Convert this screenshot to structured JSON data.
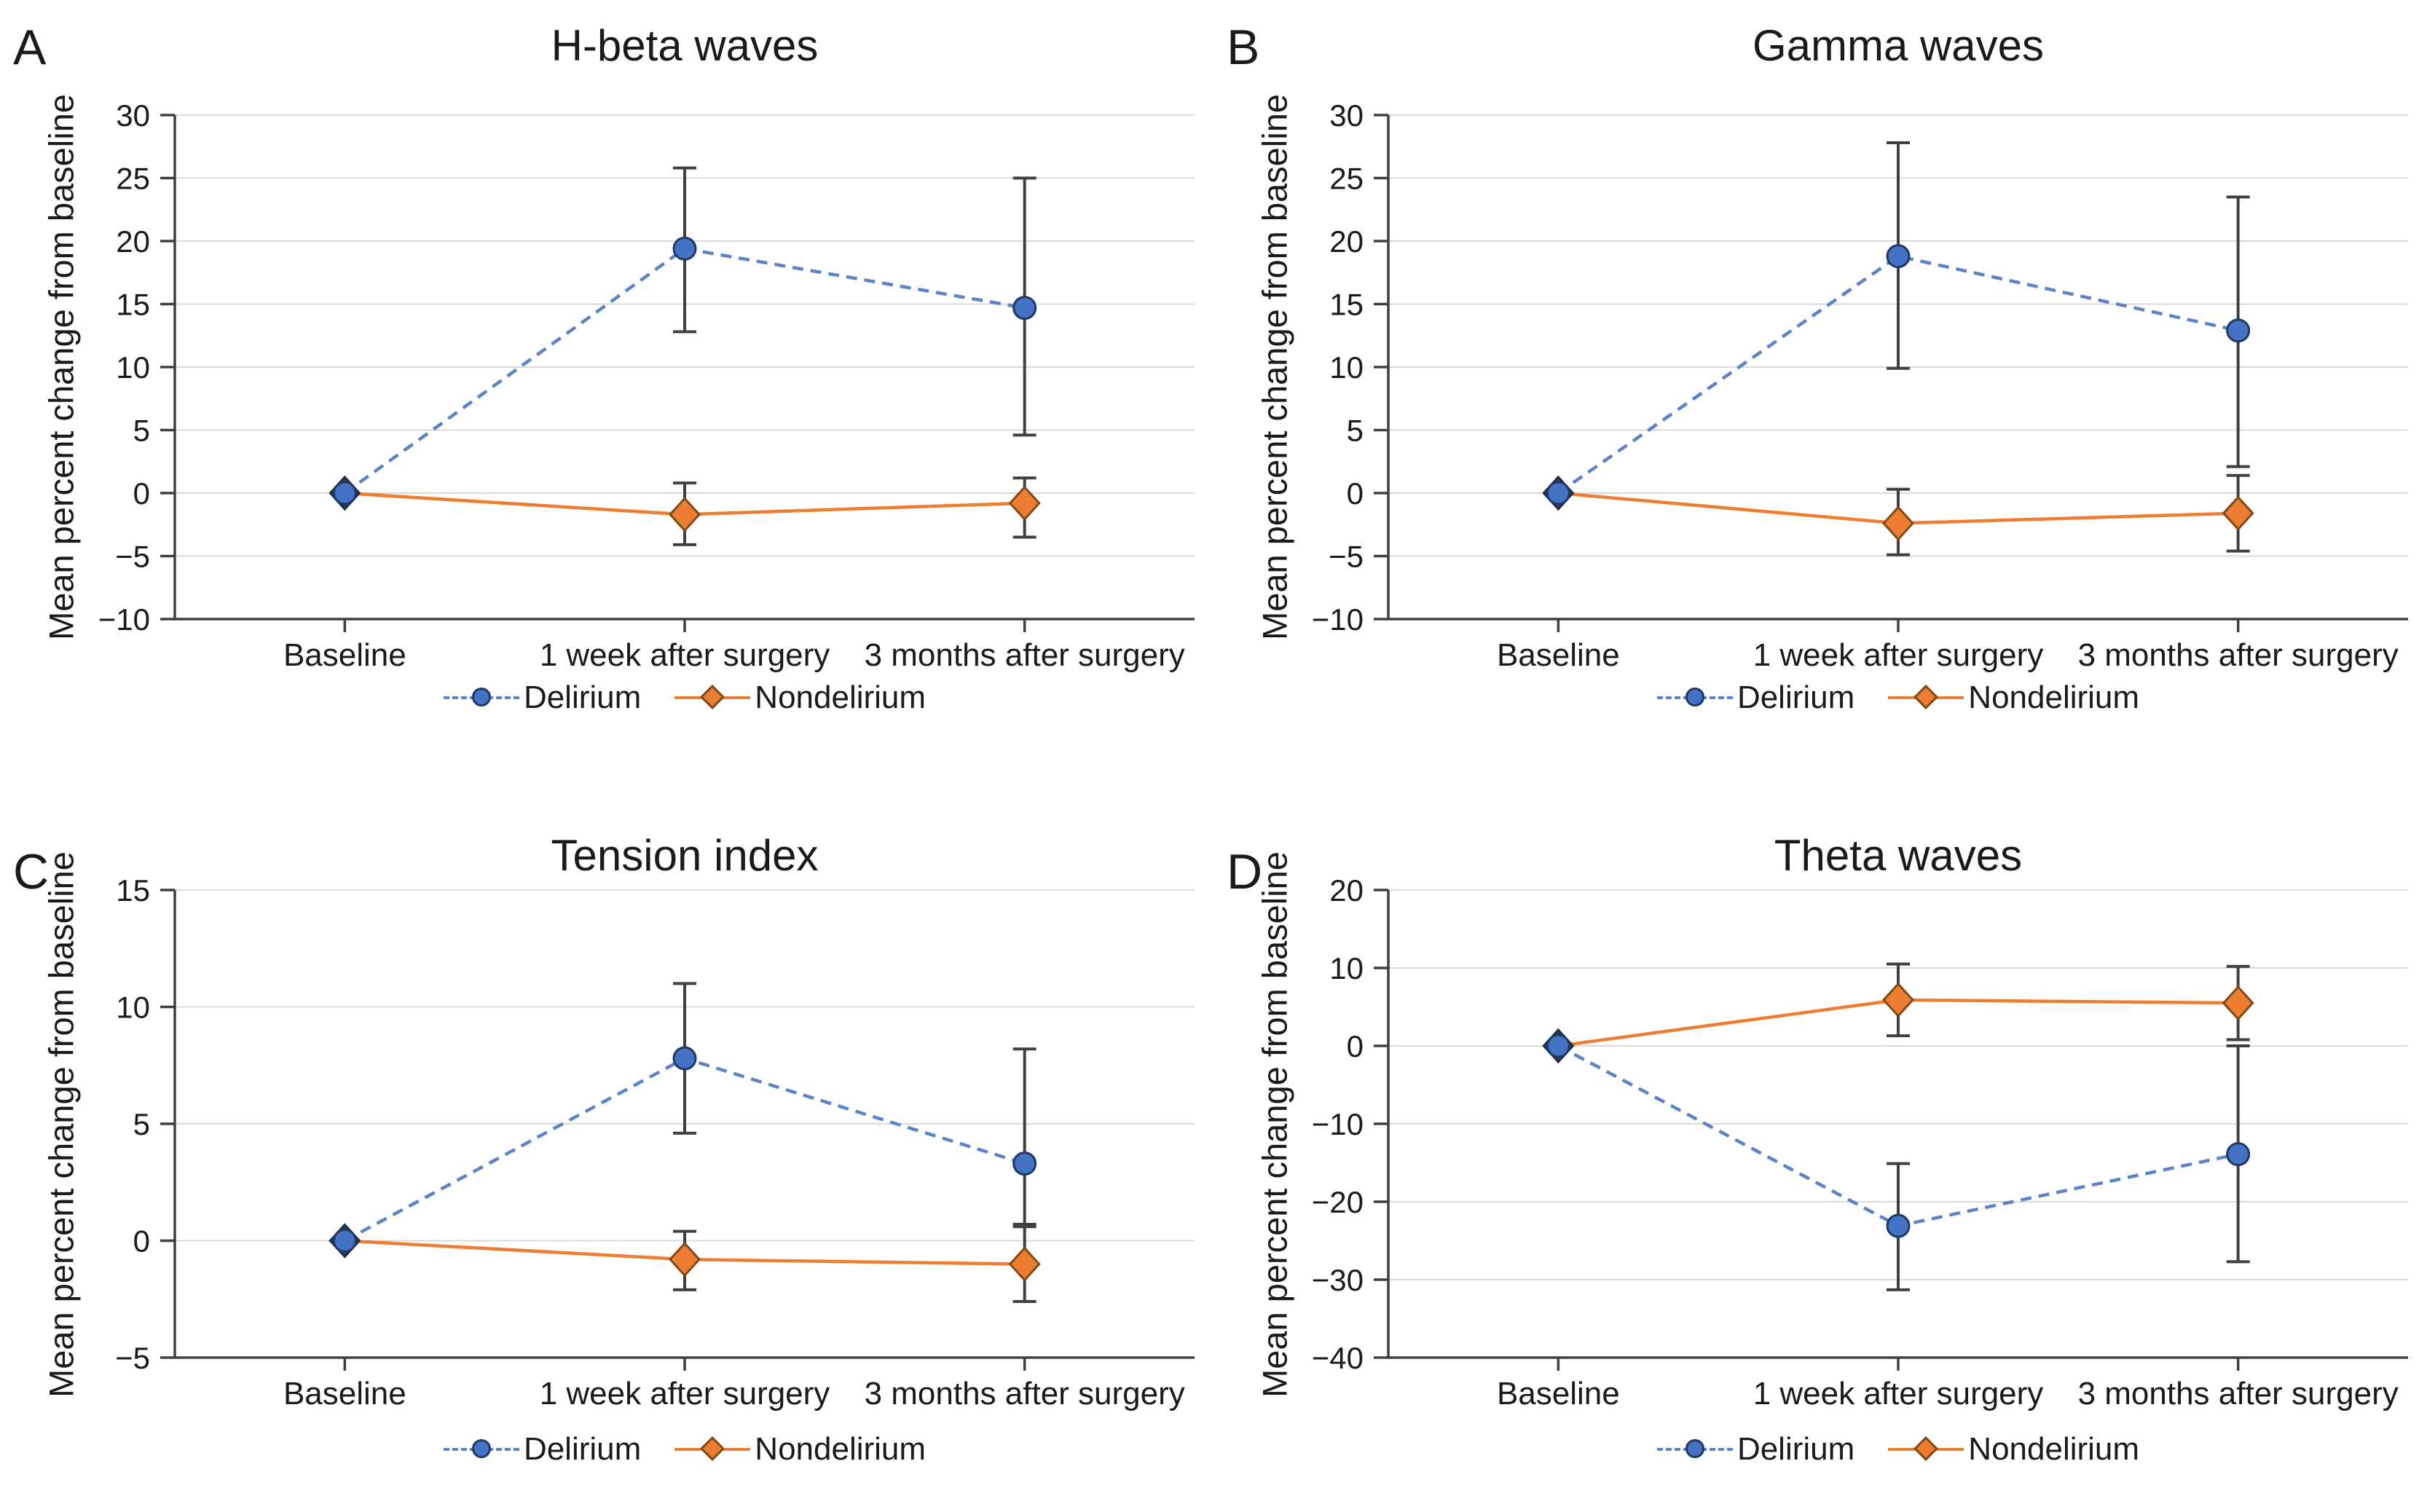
{
  "figure": {
    "background": "#ffffff",
    "ylabel": "Mean percent change from baseline",
    "legend": [
      {
        "name": "Delirium",
        "marker": "circle",
        "line": "dashed"
      },
      {
        "name": "Nondelirium",
        "marker": "diamond",
        "line": "solid"
      }
    ],
    "colors": {
      "delirium_fill": "#4472C4",
      "delirium_edge": "#1F3864",
      "delirium_line": "#5B83C9",
      "nondelirium_fill": "#ED7D31",
      "nondelirium_edge": "#7E4A17",
      "nondelirium_line": "#ED7D31",
      "baseline_diamond_fill": "#2E3F5C",
      "baseline_diamond_edge": "#1F2C45",
      "error_bar": "#404040",
      "gridline": "#D9D9D9",
      "axis": "#3F3F3F",
      "text": "#1A1A1A"
    }
  },
  "chart_data": [
    {
      "type": "line",
      "panel": "A",
      "title": "H-beta waves",
      "xlabel": "",
      "ylabel": "Mean percent change from baseline",
      "categories": [
        "Baseline",
        "1 week after surgery",
        "3 months after surgery"
      ],
      "ylim": [
        -10,
        30
      ],
      "ytick_step": 5,
      "grid": true,
      "legend_position": "bottom",
      "series": [
        {
          "name": "Delirium",
          "values": [
            0,
            19.4,
            14.7
          ],
          "err_low": [
            null,
            12.8,
            4.6
          ],
          "err_high": [
            null,
            25.8,
            25.0
          ]
        },
        {
          "name": "Nondelirium",
          "values": [
            0,
            -1.7,
            -0.8
          ],
          "err_low": [
            null,
            -4.1,
            -3.5
          ],
          "err_high": [
            null,
            0.8,
            1.2
          ]
        }
      ]
    },
    {
      "type": "line",
      "panel": "B",
      "title": "Gamma waves",
      "xlabel": "",
      "ylabel": "Mean percent change from baseline",
      "categories": [
        "Baseline",
        "1 week after surgery",
        "3 months after surgery"
      ],
      "ylim": [
        -10,
        30
      ],
      "ytick_step": 5,
      "grid": true,
      "legend_position": "bottom",
      "series": [
        {
          "name": "Delirium",
          "values": [
            0,
            18.8,
            12.9
          ],
          "err_low": [
            null,
            9.9,
            2.1
          ],
          "err_high": [
            null,
            27.8,
            23.5
          ]
        },
        {
          "name": "Nondelirium",
          "values": [
            0,
            -2.4,
            -1.6
          ],
          "err_low": [
            null,
            -4.9,
            -4.6
          ],
          "err_high": [
            null,
            0.3,
            1.4
          ]
        }
      ]
    },
    {
      "type": "line",
      "panel": "C",
      "title": "Tension index",
      "xlabel": "",
      "ylabel": "Mean percent change from baseline",
      "categories": [
        "Baseline",
        "1 week after surgery",
        "3 months after surgery"
      ],
      "ylim": [
        -5,
        15
      ],
      "ytick_step": 5,
      "grid": true,
      "legend_position": "bottom",
      "series": [
        {
          "name": "Delirium",
          "values": [
            0,
            7.8,
            3.3
          ],
          "err_low": [
            null,
            4.6,
            0.7
          ],
          "err_high": [
            null,
            11.0,
            8.2
          ]
        },
        {
          "name": "Nondelirium",
          "values": [
            0,
            -0.8,
            -1.0
          ],
          "err_low": [
            null,
            -2.1,
            -2.6
          ],
          "err_high": [
            null,
            0.4,
            0.6
          ]
        }
      ]
    },
    {
      "type": "line",
      "panel": "D",
      "title": "Theta waves",
      "xlabel": "",
      "ylabel": "Mean percent change from baseline",
      "categories": [
        "Baseline",
        "1 week after surgery",
        "3 months after surgery"
      ],
      "ylim": [
        -40,
        20
      ],
      "ytick_step": 10,
      "grid": true,
      "legend_position": "bottom",
      "series": [
        {
          "name": "Delirium",
          "values": [
            0,
            -23.1,
            -13.9
          ],
          "err_low": [
            null,
            -31.3,
            -27.7
          ],
          "err_high": [
            null,
            -15.1,
            0.0
          ]
        },
        {
          "name": "Nondelirium",
          "values": [
            0,
            5.9,
            5.5
          ],
          "err_low": [
            null,
            1.3,
            0.8
          ],
          "err_high": [
            null,
            10.5,
            10.2
          ]
        }
      ]
    }
  ]
}
